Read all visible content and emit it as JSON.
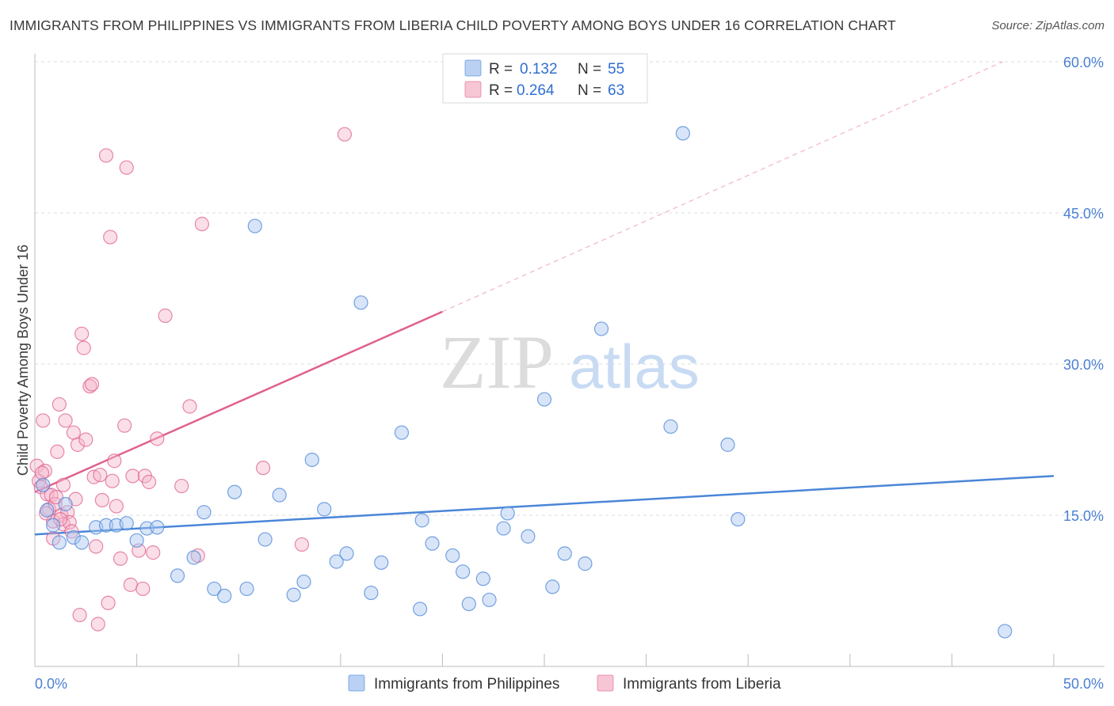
{
  "title": "IMMIGRANTS FROM PHILIPPINES VS IMMIGRANTS FROM LIBERIA CHILD POVERTY AMONG BOYS UNDER 16 CORRELATION CHART",
  "source": "Source: ZipAtlas.com",
  "watermark": {
    "zip": "ZIP",
    "atlas": "atlas"
  },
  "legend": {
    "rows": [
      {
        "r_label": "R =",
        "r_value": "0.132",
        "n_label": "N =",
        "n_value": "55",
        "color": "#a9c6f0"
      },
      {
        "r_label": "R =",
        "r_value": "0.264",
        "n_label": "N =",
        "n_value": "63",
        "color": "#f5b8cb"
      }
    ]
  },
  "chart_data": {
    "type": "scatter",
    "ylabel": "Child Poverty Among Boys Under 16",
    "xlim": [
      0,
      50
    ],
    "ylim": [
      0,
      60
    ],
    "x_tick_labels": [
      "0.0%",
      "50.0%"
    ],
    "y_ticks": [
      {
        "value": 15,
        "label": "15.0%"
      },
      {
        "value": 30,
        "label": "30.0%"
      },
      {
        "value": 45,
        "label": "45.0%"
      },
      {
        "value": 60,
        "label": "60.0%"
      }
    ],
    "grid": true,
    "series": [
      {
        "name": "Immigrants from Philippines",
        "color": "#4a86d8",
        "fill": "#a9c6f0",
        "trend": {
          "x0": 0,
          "y0": 13.1,
          "x1": 50,
          "y1": 18.9
        },
        "points": [
          [
            0.4,
            18.0
          ],
          [
            0.6,
            15.5
          ],
          [
            0.9,
            14.0
          ],
          [
            1.2,
            12.3
          ],
          [
            1.5,
            16.1
          ],
          [
            1.9,
            12.8
          ],
          [
            2.3,
            12.3
          ],
          [
            3.0,
            13.8
          ],
          [
            3.5,
            14.0
          ],
          [
            4.0,
            14.0
          ],
          [
            4.5,
            14.2
          ],
          [
            5.0,
            12.5
          ],
          [
            5.5,
            13.7
          ],
          [
            6.0,
            13.8
          ],
          [
            7.0,
            9.0
          ],
          [
            7.8,
            10.8
          ],
          [
            8.3,
            15.3
          ],
          [
            8.8,
            7.7
          ],
          [
            9.3,
            7.0
          ],
          [
            9.8,
            17.3
          ],
          [
            10.4,
            7.7
          ],
          [
            10.8,
            43.7
          ],
          [
            11.3,
            12.6
          ],
          [
            12.0,
            17.0
          ],
          [
            12.7,
            7.1
          ],
          [
            13.2,
            8.4
          ],
          [
            13.6,
            20.5
          ],
          [
            14.2,
            15.6
          ],
          [
            14.8,
            10.4
          ],
          [
            15.3,
            11.2
          ],
          [
            16.0,
            36.1
          ],
          [
            16.5,
            7.3
          ],
          [
            17.0,
            10.3
          ],
          [
            18.0,
            23.2
          ],
          [
            18.9,
            5.7
          ],
          [
            19.0,
            14.5
          ],
          [
            19.5,
            12.2
          ],
          [
            20.5,
            11.0
          ],
          [
            21.0,
            9.4
          ],
          [
            21.3,
            6.2
          ],
          [
            22.0,
            8.7
          ],
          [
            22.3,
            6.6
          ],
          [
            23.0,
            13.7
          ],
          [
            23.2,
            15.2
          ],
          [
            24.2,
            12.9
          ],
          [
            25.0,
            26.5
          ],
          [
            25.4,
            7.9
          ],
          [
            26.0,
            11.2
          ],
          [
            27.0,
            10.2
          ],
          [
            27.8,
            33.5
          ],
          [
            31.2,
            23.8
          ],
          [
            31.8,
            52.9
          ],
          [
            34.0,
            22.0
          ],
          [
            34.5,
            14.6
          ],
          [
            47.6,
            3.5
          ]
        ]
      },
      {
        "name": "Immigrants from Liberia",
        "color": "#e0608f",
        "fill": "#f5b8cb",
        "trend": {
          "x0": 0,
          "y0": 17.3,
          "x1": 20.0,
          "y1": 35.2
        },
        "trend_ext": {
          "x0": 20.0,
          "y0": 35.2,
          "x1": 47.5,
          "y1": 60.0
        },
        "points": [
          [
            0.1,
            19.9
          ],
          [
            0.2,
            18.4
          ],
          [
            0.3,
            17.8
          ],
          [
            0.4,
            24.4
          ],
          [
            0.5,
            19.4
          ],
          [
            0.6,
            17.1
          ],
          [
            0.7,
            15.6
          ],
          [
            0.8,
            17.0
          ],
          [
            0.9,
            14.4
          ],
          [
            0.9,
            12.7
          ],
          [
            1.0,
            16.1
          ],
          [
            1.1,
            21.3
          ],
          [
            1.2,
            26.0
          ],
          [
            1.3,
            15.0
          ],
          [
            1.4,
            18.0
          ],
          [
            1.4,
            14.1
          ],
          [
            1.5,
            24.4
          ],
          [
            1.6,
            15.3
          ],
          [
            1.7,
            14.3
          ],
          [
            1.8,
            13.4
          ],
          [
            1.9,
            23.2
          ],
          [
            2.0,
            16.6
          ],
          [
            2.1,
            22.0
          ],
          [
            2.2,
            5.1
          ],
          [
            2.3,
            33.0
          ],
          [
            2.4,
            31.6
          ],
          [
            2.5,
            22.5
          ],
          [
            2.7,
            27.8
          ],
          [
            2.8,
            28.0
          ],
          [
            2.9,
            18.8
          ],
          [
            3.0,
            11.9
          ],
          [
            3.1,
            4.2
          ],
          [
            3.2,
            19.0
          ],
          [
            3.3,
            16.5
          ],
          [
            3.5,
            50.7
          ],
          [
            3.6,
            6.3
          ],
          [
            3.7,
            42.6
          ],
          [
            3.8,
            18.4
          ],
          [
            3.9,
            20.4
          ],
          [
            4.0,
            15.9
          ],
          [
            4.2,
            10.7
          ],
          [
            4.4,
            23.9
          ],
          [
            4.5,
            49.5
          ],
          [
            4.7,
            8.1
          ],
          [
            4.8,
            18.9
          ],
          [
            5.1,
            11.5
          ],
          [
            5.3,
            7.7
          ],
          [
            5.4,
            18.9
          ],
          [
            5.6,
            18.3
          ],
          [
            5.8,
            11.3
          ],
          [
            6.0,
            22.6
          ],
          [
            6.4,
            34.8
          ],
          [
            7.2,
            17.9
          ],
          [
            7.6,
            25.8
          ],
          [
            8.0,
            11.0
          ],
          [
            8.2,
            43.9
          ],
          [
            11.2,
            19.7
          ],
          [
            13.1,
            12.1
          ],
          [
            15.2,
            52.8
          ],
          [
            1.05,
            16.8
          ],
          [
            0.35,
            19.2
          ],
          [
            1.25,
            14.6
          ],
          [
            0.55,
            15.2
          ]
        ]
      }
    ]
  }
}
